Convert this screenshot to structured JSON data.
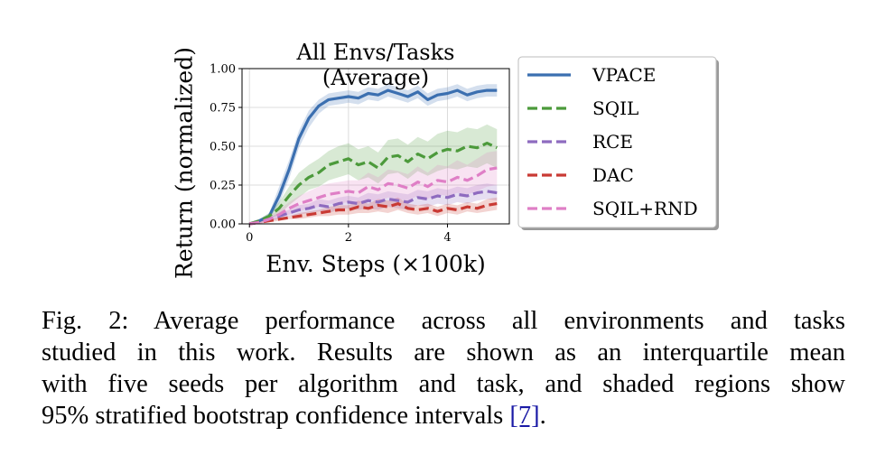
{
  "chart_data": {
    "type": "line",
    "title": "All Envs/Tasks (Average)",
    "xlabel": "Env. Steps (×100k)",
    "ylabel": "Return (normalized)",
    "xlim": [
      -0.15,
      5.25
    ],
    "ylim": [
      0,
      1.0
    ],
    "xticks": [
      0,
      2,
      4
    ],
    "yticks": [
      0.0,
      0.25,
      0.5,
      0.75,
      1.0
    ],
    "ytick_labels": [
      "0.00",
      "0.25",
      "0.50",
      "0.75",
      "1.00"
    ],
    "grid": true,
    "legend_position": "right",
    "x": [
      0.0,
      0.2,
      0.4,
      0.6,
      0.8,
      1.0,
      1.2,
      1.4,
      1.6,
      1.8,
      2.0,
      2.2,
      2.4,
      2.6,
      2.8,
      3.0,
      3.2,
      3.4,
      3.6,
      3.8,
      4.0,
      4.2,
      4.4,
      4.6,
      4.8,
      5.0
    ],
    "series": [
      {
        "name": "VPACE",
        "color": "#3b6fb0",
        "style": "solid",
        "values": [
          0.0,
          0.02,
          0.05,
          0.18,
          0.35,
          0.55,
          0.68,
          0.76,
          0.8,
          0.81,
          0.82,
          0.81,
          0.84,
          0.83,
          0.86,
          0.84,
          0.82,
          0.85,
          0.8,
          0.83,
          0.84,
          0.86,
          0.83,
          0.85,
          0.86,
          0.86
        ],
        "lower": [
          0.0,
          0.01,
          0.03,
          0.13,
          0.29,
          0.49,
          0.62,
          0.71,
          0.76,
          0.77,
          0.78,
          0.77,
          0.8,
          0.79,
          0.82,
          0.8,
          0.78,
          0.81,
          0.76,
          0.79,
          0.8,
          0.82,
          0.79,
          0.81,
          0.82,
          0.82
        ],
        "upper": [
          0.01,
          0.03,
          0.07,
          0.24,
          0.41,
          0.6,
          0.73,
          0.8,
          0.84,
          0.85,
          0.86,
          0.85,
          0.88,
          0.87,
          0.9,
          0.88,
          0.86,
          0.89,
          0.84,
          0.87,
          0.88,
          0.9,
          0.87,
          0.89,
          0.9,
          0.9
        ]
      },
      {
        "name": "SQIL",
        "color": "#4c9a3b",
        "style": "dashed",
        "values": [
          0.0,
          0.02,
          0.05,
          0.1,
          0.18,
          0.25,
          0.3,
          0.33,
          0.38,
          0.4,
          0.42,
          0.38,
          0.4,
          0.36,
          0.43,
          0.44,
          0.4,
          0.45,
          0.42,
          0.46,
          0.48,
          0.47,
          0.5,
          0.49,
          0.52,
          0.49
        ],
        "lower": [
          0.0,
          0.01,
          0.03,
          0.06,
          0.12,
          0.17,
          0.22,
          0.24,
          0.28,
          0.3,
          0.32,
          0.28,
          0.3,
          0.26,
          0.32,
          0.33,
          0.29,
          0.34,
          0.31,
          0.34,
          0.36,
          0.35,
          0.37,
          0.36,
          0.39,
          0.36
        ],
        "upper": [
          0.01,
          0.03,
          0.07,
          0.14,
          0.24,
          0.33,
          0.38,
          0.42,
          0.47,
          0.5,
          0.52,
          0.48,
          0.5,
          0.46,
          0.54,
          0.55,
          0.51,
          0.56,
          0.53,
          0.58,
          0.6,
          0.59,
          0.62,
          0.61,
          0.64,
          0.61
        ]
      },
      {
        "name": "RCE",
        "color": "#8e6bbf",
        "style": "dashed",
        "values": [
          0.0,
          0.01,
          0.03,
          0.05,
          0.07,
          0.09,
          0.1,
          0.12,
          0.11,
          0.13,
          0.14,
          0.13,
          0.15,
          0.14,
          0.16,
          0.15,
          0.14,
          0.17,
          0.16,
          0.18,
          0.17,
          0.19,
          0.18,
          0.2,
          0.21,
          0.2
        ],
        "lower": [
          0.0,
          0.0,
          0.02,
          0.03,
          0.05,
          0.06,
          0.07,
          0.08,
          0.07,
          0.09,
          0.1,
          0.09,
          0.1,
          0.09,
          0.11,
          0.1,
          0.09,
          0.12,
          0.11,
          0.13,
          0.12,
          0.14,
          0.13,
          0.15,
          0.16,
          0.15
        ],
        "upper": [
          0.01,
          0.02,
          0.04,
          0.07,
          0.09,
          0.12,
          0.13,
          0.16,
          0.15,
          0.17,
          0.18,
          0.17,
          0.2,
          0.19,
          0.21,
          0.2,
          0.19,
          0.22,
          0.21,
          0.23,
          0.22,
          0.24,
          0.23,
          0.25,
          0.26,
          0.25
        ]
      },
      {
        "name": "DAC",
        "color": "#c93a34",
        "style": "dashed",
        "values": [
          0.0,
          0.01,
          0.02,
          0.03,
          0.04,
          0.05,
          0.06,
          0.07,
          0.08,
          0.09,
          0.09,
          0.11,
          0.1,
          0.12,
          0.11,
          0.13,
          0.1,
          0.09,
          0.1,
          0.08,
          0.1,
          0.09,
          0.11,
          0.1,
          0.12,
          0.13
        ],
        "lower": [
          0.0,
          0.0,
          0.01,
          0.02,
          0.03,
          0.03,
          0.04,
          0.05,
          0.05,
          0.06,
          0.06,
          0.07,
          0.07,
          0.08,
          0.07,
          0.09,
          0.07,
          0.06,
          0.07,
          0.05,
          0.07,
          0.06,
          0.08,
          0.07,
          0.08,
          0.09
        ],
        "upper": [
          0.01,
          0.02,
          0.03,
          0.04,
          0.05,
          0.07,
          0.08,
          0.09,
          0.11,
          0.12,
          0.12,
          0.15,
          0.13,
          0.16,
          0.15,
          0.17,
          0.13,
          0.12,
          0.13,
          0.11,
          0.13,
          0.12,
          0.14,
          0.13,
          0.16,
          0.17
        ]
      },
      {
        "name": "SQIL+RND",
        "color": "#df7fc6",
        "style": "dashed",
        "values": [
          0.0,
          0.01,
          0.03,
          0.06,
          0.1,
          0.13,
          0.15,
          0.17,
          0.19,
          0.2,
          0.21,
          0.2,
          0.24,
          0.22,
          0.26,
          0.25,
          0.23,
          0.27,
          0.24,
          0.28,
          0.27,
          0.3,
          0.28,
          0.31,
          0.35,
          0.36
        ],
        "lower": [
          0.0,
          0.0,
          0.02,
          0.04,
          0.06,
          0.08,
          0.1,
          0.11,
          0.13,
          0.13,
          0.14,
          0.13,
          0.16,
          0.14,
          0.17,
          0.16,
          0.15,
          0.18,
          0.16,
          0.19,
          0.18,
          0.2,
          0.19,
          0.21,
          0.24,
          0.25
        ],
        "upper": [
          0.01,
          0.02,
          0.05,
          0.09,
          0.14,
          0.18,
          0.21,
          0.24,
          0.26,
          0.27,
          0.28,
          0.28,
          0.33,
          0.3,
          0.35,
          0.34,
          0.32,
          0.37,
          0.33,
          0.38,
          0.37,
          0.41,
          0.38,
          0.42,
          0.46,
          0.47
        ]
      }
    ]
  },
  "caption": {
    "lines": [
      "Fig. 2: Average performance across all environments and tasks",
      "studied in this work. Results are shown as an interquartile mean",
      "with five seeds per algorithm and task, and shaded regions show"
    ],
    "last_line_text": "95% stratified bootstrap confidence intervals ",
    "reference": "[7]",
    "end": "."
  }
}
